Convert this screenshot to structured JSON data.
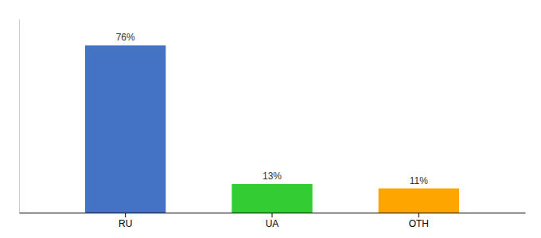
{
  "chart_data": {
    "type": "bar",
    "categories": [
      "RU",
      "UA",
      "OTH"
    ],
    "values": [
      76,
      13,
      11
    ],
    "value_labels": [
      "76%",
      "13%",
      "11%"
    ],
    "colors": [
      "#4472C4",
      "#33CC33",
      "#FFA500"
    ],
    "ylim": [
      0,
      88
    ],
    "data_labels": true,
    "tick_labels": "x",
    "grid": false
  }
}
